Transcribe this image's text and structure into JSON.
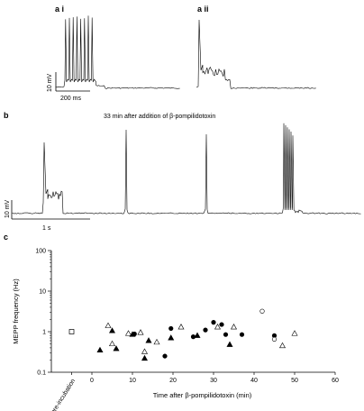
{
  "panels": {
    "a_i": "a i",
    "a_ii": "a ii",
    "b": "b",
    "c": "c"
  },
  "scalebars": {
    "a_voltage": "10 mV",
    "a_time": "200 ms",
    "b_voltage": "10 mV",
    "b_time": "1 s"
  },
  "panel_b_caption": "33 min after addition of β-pompilidotoxin",
  "chart_data": {
    "type": "scatter",
    "title": "",
    "xlabel": "Time after β-pompilidotoxin (min)",
    "ylabel": "MEPP frequency (Hz)",
    "y_scale": "log",
    "xlim": [
      -10,
      60
    ],
    "ylim": [
      0.1,
      100
    ],
    "x_ticks": [
      0,
      10,
      20,
      30,
      40,
      50,
      60
    ],
    "y_ticks": [
      0.1,
      1,
      10,
      100
    ],
    "y_tick_labels": [
      "0.1",
      "1",
      "10",
      "100"
    ],
    "pre_incubation_label": "pre-incubation",
    "pre_incubation_value": 1.0,
    "grid": false,
    "series": [
      {
        "marker": "filled-triangle",
        "points": [
          [
            2,
            0.35
          ],
          [
            5,
            1.05
          ],
          [
            6,
            0.38
          ],
          [
            10,
            0.85
          ],
          [
            13,
            0.22
          ],
          [
            14,
            0.6
          ],
          [
            19.5,
            0.7
          ],
          [
            26,
            0.8
          ],
          [
            34,
            0.48
          ]
        ]
      },
      {
        "marker": "open-triangle",
        "points": [
          [
            4,
            1.4
          ],
          [
            5,
            0.5
          ],
          [
            9,
            0.9
          ],
          [
            12,
            0.95
          ],
          [
            13,
            0.32
          ],
          [
            16,
            0.55
          ],
          [
            22,
            1.3
          ],
          [
            31,
            1.3
          ],
          [
            35,
            1.3
          ],
          [
            47,
            0.45
          ],
          [
            50,
            0.9
          ]
        ]
      },
      {
        "marker": "filled-circle",
        "points": [
          [
            10.5,
            0.88
          ],
          [
            18,
            0.25
          ],
          [
            19.5,
            1.2
          ],
          [
            25,
            0.75
          ],
          [
            28,
            1.1
          ],
          [
            30,
            1.7
          ],
          [
            32,
            1.5
          ],
          [
            33,
            0.85
          ],
          [
            37,
            0.85
          ],
          [
            45,
            0.8
          ]
        ]
      },
      {
        "marker": "open-circle",
        "points": [
          [
            42,
            3.2
          ],
          [
            45,
            0.65
          ]
        ]
      }
    ]
  }
}
